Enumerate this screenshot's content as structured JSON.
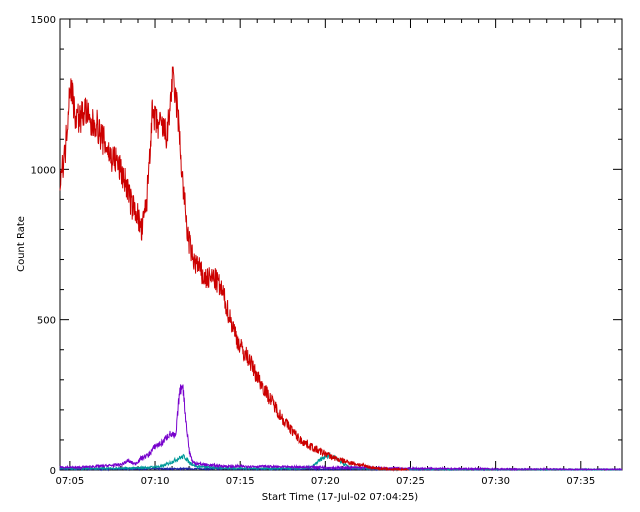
{
  "chart_data": {
    "type": "line",
    "title": "",
    "xlabel": "Start Time (17-Jul-02 07:04:25)",
    "ylabel": "Count Rate",
    "x_unit": "minutes after 07:04:25",
    "xlim": [
      0,
      33
    ],
    "ylim": [
      0,
      1500
    ],
    "x_ticks": [
      {
        "value": 0.58,
        "label": "07:05"
      },
      {
        "value": 5.58,
        "label": "07:10"
      },
      {
        "value": 10.58,
        "label": "07:15"
      },
      {
        "value": 15.58,
        "label": "07:20"
      },
      {
        "value": 20.58,
        "label": "07:25"
      },
      {
        "value": 25.58,
        "label": "07:30"
      },
      {
        "value": 30.58,
        "label": "07:35"
      }
    ],
    "y_ticks": [
      {
        "value": 0,
        "label": "0"
      },
      {
        "value": 500,
        "label": "500"
      },
      {
        "value": 1000,
        "label": "1000"
      },
      {
        "value": 1500,
        "label": "1500"
      }
    ],
    "grid": false,
    "legend": "none",
    "series": [
      {
        "color": "#cc0000",
        "x": [
          0,
          0.3,
          0.6,
          0.9,
          1.2,
          1.5,
          1.8,
          2.1,
          2.4,
          2.7,
          3.0,
          3.3,
          3.6,
          3.9,
          4.2,
          4.5,
          4.8,
          5.1,
          5.4,
          5.7,
          6.0,
          6.3,
          6.6,
          6.9,
          7.2,
          7.5,
          7.8,
          8.1,
          8.4,
          8.7,
          9.0,
          9.3,
          9.6,
          9.9,
          10.2,
          10.5,
          10.8,
          11.1,
          11.4,
          11.7,
          12.0,
          12.3,
          12.6,
          12.9,
          13.2,
          13.5,
          13.8,
          14.1,
          14.4,
          14.7,
          15.0,
          15.3,
          15.6,
          15.9,
          16.2,
          16.5,
          16.8,
          17.1,
          17.4,
          17.7,
          18.0,
          18.3,
          18.6,
          18.9,
          19.2,
          19.5,
          19.8,
          20.1,
          20.5
        ],
        "values": [
          980,
          1050,
          1300,
          1180,
          1170,
          1200,
          1140,
          1160,
          1110,
          1080,
          1040,
          1030,
          990,
          950,
          880,
          860,
          790,
          900,
          1180,
          1150,
          1140,
          1110,
          1300,
          1200,
          960,
          780,
          700,
          680,
          640,
          635,
          640,
          620,
          580,
          520,
          470,
          420,
          390,
          370,
          330,
          300,
          270,
          240,
          215,
          185,
          160,
          140,
          120,
          100,
          90,
          80,
          70,
          60,
          55,
          45,
          38,
          32,
          28,
          24,
          20,
          16,
          12,
          8,
          6,
          4,
          3,
          2,
          1,
          1,
          1
        ]
      },
      {
        "color": "#7700cc",
        "x": [
          0,
          1,
          2,
          3,
          3.6,
          4.0,
          4.4,
          4.8,
          5.2,
          5.6,
          6.0,
          6.4,
          6.8,
          7.0,
          7.2,
          7.4,
          7.6,
          7.8,
          8.2,
          9,
          10,
          11,
          12,
          13,
          14,
          15,
          16,
          17,
          18,
          19,
          20,
          21,
          22,
          23,
          24,
          25,
          26,
          27,
          28,
          29,
          30,
          31,
          32,
          33
        ],
        "values": [
          10,
          8,
          12,
          15,
          18,
          30,
          20,
          40,
          50,
          80,
          90,
          120,
          110,
          250,
          290,
          160,
          60,
          25,
          20,
          15,
          12,
          12,
          12,
          10,
          10,
          10,
          8,
          8,
          8,
          6,
          6,
          5,
          5,
          4,
          4,
          4,
          3,
          3,
          3,
          3,
          2,
          2,
          2,
          2
        ]
      },
      {
        "color": "#009999",
        "x": [
          0,
          2,
          4,
          5,
          6,
          6.5,
          7.0,
          7.3,
          7.6,
          8,
          9,
          10,
          11,
          12,
          13,
          14,
          14.8,
          15.3,
          15.8,
          16.2,
          16.7,
          17,
          18,
          19,
          20,
          21,
          22,
          24,
          26,
          28,
          30,
          32,
          33
        ],
        "values": [
          5,
          5,
          6,
          8,
          12,
          25,
          40,
          45,
          25,
          12,
          8,
          6,
          5,
          5,
          5,
          5,
          10,
          35,
          50,
          40,
          20,
          8,
          5,
          4,
          3,
          3,
          2,
          2,
          2,
          2,
          1,
          1,
          1
        ]
      },
      {
        "color": "#2222aa",
        "x": [
          0,
          3,
          6,
          9,
          12,
          15,
          18,
          21,
          24,
          27,
          30,
          33
        ],
        "values": [
          3,
          3,
          4,
          4,
          3,
          3,
          3,
          2,
          2,
          2,
          2,
          2
        ]
      }
    ]
  }
}
